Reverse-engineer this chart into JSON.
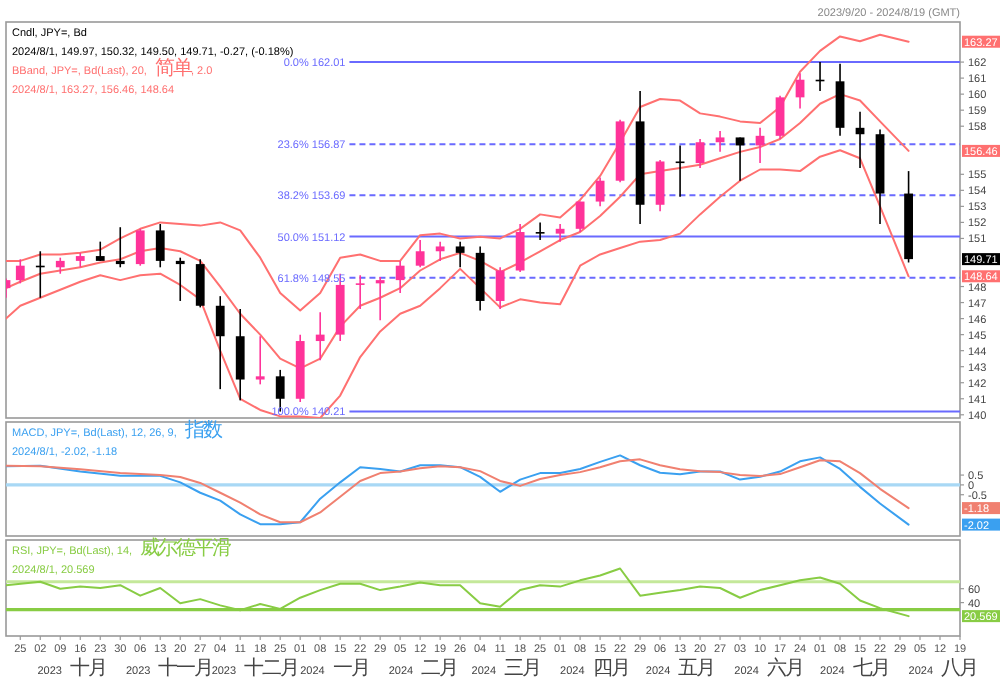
{
  "chart_data": [
    {
      "type": "candlestick",
      "xlim": [
        "2023-09-20",
        "2024-08-19"
      ],
      "ylim": [
        139.8,
        164.5
      ],
      "tick_labels": "y",
      "yticks": [
        140,
        141,
        142,
        143,
        144,
        145,
        146,
        147,
        148,
        151,
        152,
        153,
        154,
        155,
        158,
        159,
        160,
        161,
        162
      ],
      "x": [
        "2023-09-20",
        "2023-09-25",
        "2023-10-02",
        "2023-10-09",
        "2023-10-16",
        "2023-10-23",
        "2023-10-30",
        "2023-11-06",
        "2023-11-13",
        "2023-11-20",
        "2023-11-27",
        "2023-12-04",
        "2023-12-11",
        "2023-12-18",
        "2023-12-25",
        "2024-01-01",
        "2024-01-08",
        "2024-01-15",
        "2024-01-22",
        "2024-01-29",
        "2024-02-05",
        "2024-02-12",
        "2024-02-19",
        "2024-02-26",
        "2024-03-04",
        "2024-03-11",
        "2024-03-18",
        "2024-03-25",
        "2024-04-01",
        "2024-04-08",
        "2024-04-15",
        "2024-04-22",
        "2024-04-29",
        "2024-05-06",
        "2024-05-13",
        "2024-05-20",
        "2024-05-27",
        "2024-06-03",
        "2024-06-10",
        "2024-06-17",
        "2024-06-24",
        "2024-07-01",
        "2024-07-08",
        "2024-07-15",
        "2024-07-22",
        "2024-08-01"
      ],
      "ohlc": [
        [
          147.9,
          148.5,
          147.3,
          148.4
        ],
        [
          148.4,
          149.7,
          148.2,
          149.3
        ],
        [
          149.3,
          150.2,
          147.3,
          149.2
        ],
        [
          149.2,
          149.8,
          148.8,
          149.6
        ],
        [
          149.6,
          150.1,
          149.2,
          149.9
        ],
        [
          149.9,
          150.8,
          149.6,
          149.6
        ],
        [
          149.6,
          151.7,
          149.2,
          149.4
        ],
        [
          149.4,
          151.6,
          149.3,
          151.5
        ],
        [
          151.5,
          151.9,
          149.2,
          149.6
        ],
        [
          149.6,
          149.8,
          147.1,
          149.4
        ],
        [
          149.4,
          149.7,
          146.7,
          146.8
        ],
        [
          146.8,
          147.4,
          141.6,
          144.9
        ],
        [
          144.9,
          146.6,
          140.9,
          142.2
        ],
        [
          142.2,
          144.9,
          141.9,
          142.4
        ],
        [
          142.4,
          142.8,
          140.2,
          141.0
        ],
        [
          141.0,
          145.0,
          140.8,
          144.6
        ],
        [
          144.6,
          146.4,
          143.4,
          145.0
        ],
        [
          145.0,
          148.8,
          144.6,
          148.1
        ],
        [
          148.1,
          148.7,
          146.6,
          148.2
        ],
        [
          148.2,
          148.6,
          145.9,
          148.4
        ],
        [
          148.4,
          149.6,
          147.6,
          149.3
        ],
        [
          149.3,
          150.9,
          149.2,
          150.2
        ],
        [
          150.2,
          150.8,
          149.6,
          150.5
        ],
        [
          150.5,
          150.8,
          149.2,
          150.1
        ],
        [
          150.1,
          150.5,
          146.5,
          147.1
        ],
        [
          147.1,
          149.2,
          146.6,
          149.0
        ],
        [
          149.0,
          151.9,
          148.9,
          151.4
        ],
        [
          151.4,
          152.0,
          150.9,
          151.3
        ],
        [
          151.3,
          151.9,
          150.8,
          151.6
        ],
        [
          151.6,
          153.3,
          151.4,
          153.3
        ],
        [
          153.3,
          154.8,
          153.0,
          154.6
        ],
        [
          154.6,
          158.4,
          154.5,
          158.3
        ],
        [
          158.3,
          160.2,
          151.9,
          153.1
        ],
        [
          153.1,
          155.9,
          152.7,
          155.8
        ],
        [
          155.8,
          156.8,
          153.6,
          155.7
        ],
        [
          155.7,
          157.2,
          155.4,
          157.0
        ],
        [
          157.0,
          157.7,
          156.4,
          157.3
        ],
        [
          157.3,
          157.3,
          154.6,
          156.8
        ],
        [
          156.8,
          157.9,
          155.7,
          157.4
        ],
        [
          157.4,
          159.9,
          157.2,
          159.8
        ],
        [
          159.8,
          161.3,
          159.1,
          160.9
        ],
        [
          160.9,
          162.0,
          160.2,
          160.8
        ],
        [
          160.8,
          161.9,
          157.4,
          157.9
        ],
        [
          157.9,
          158.9,
          155.4,
          157.5
        ],
        [
          157.5,
          157.8,
          151.9,
          153.8
        ],
        [
          153.8,
          155.2,
          149.5,
          149.71
        ]
      ],
      "colors": [
        "#ff3399",
        "#ff3399",
        "#000000",
        "#ff3399",
        "#ff3399",
        "#000000",
        "#000000",
        "#ff3399",
        "#000000",
        "#000000",
        "#000000",
        "#000000",
        "#000000",
        "#ff3399",
        "#000000",
        "#ff3399",
        "#ff3399",
        "#ff3399",
        "#ff3399",
        "#ff3399",
        "#ff3399",
        "#ff3399",
        "#ff3399",
        "#000000",
        "#000000",
        "#ff3399",
        "#ff3399",
        "#000000",
        "#ff3399",
        "#ff3399",
        "#ff3399",
        "#ff3399",
        "#000000",
        "#ff3399",
        "#000000",
        "#ff3399",
        "#ff3399",
        "#000000",
        "#ff3399",
        "#ff3399",
        "#ff3399",
        "#000000",
        "#000000",
        "#000000",
        "#000000",
        "#000000"
      ],
      "series": [
        {
          "type": "line",
          "color": "#ff7070",
          "values": [
            149.6,
            149.6,
            150.0,
            150.0,
            150.1,
            150.3,
            151.0,
            151.6,
            152.0,
            151.9,
            151.8,
            152.0,
            151.5,
            149.8,
            147.6,
            146.5,
            147.6,
            149.8,
            150.0,
            149.6,
            149.6,
            151.2,
            151.3,
            151.0,
            151.1,
            151.0,
            151.6,
            152.5,
            152.3,
            153.4,
            154.9,
            157.0,
            159.2,
            159.7,
            159.6,
            158.8,
            158.6,
            158.3,
            158.2,
            159.2,
            161.4,
            162.7,
            163.6,
            163.3,
            163.7,
            163.27
          ]
        },
        {
          "type": "line",
          "color": "#ff7070",
          "values": [
            147.9,
            148.3,
            148.8,
            149.0,
            149.2,
            149.5,
            149.7,
            150.2,
            150.4,
            150.2,
            149.6,
            148.0,
            146.3,
            145.0,
            143.5,
            142.9,
            143.5,
            145.5,
            146.8,
            147.3,
            147.9,
            149.0,
            149.7,
            150.1,
            149.6,
            148.9,
            149.5,
            150.2,
            150.9,
            151.4,
            152.4,
            153.6,
            155.0,
            155.2,
            155.4,
            155.6,
            156.0,
            156.4,
            156.7,
            157.2,
            158.2,
            159.4,
            160.0,
            159.6,
            158.3,
            156.46
          ]
        },
        {
          "type": "line",
          "color": "#ff7070",
          "values": [
            146.0,
            146.8,
            147.3,
            147.8,
            148.3,
            148.7,
            148.4,
            148.7,
            148.8,
            148.1,
            147.2,
            144.0,
            141.0,
            140.3,
            139.9,
            139.9,
            139.8,
            141.2,
            143.6,
            145.2,
            146.3,
            146.8,
            147.9,
            149.1,
            147.9,
            146.7,
            147.2,
            147.0,
            146.9,
            149.3,
            150.0,
            150.4,
            150.8,
            150.9,
            151.3,
            152.5,
            153.6,
            154.6,
            155.3,
            155.3,
            155.2,
            156.1,
            156.5,
            156.0,
            153.0,
            148.64
          ]
        }
      ],
      "ref_lines": [
        {
          "axis": "y",
          "value": 162.01,
          "label": "0.0%  162.01",
          "color": "#6a6aff",
          "line_style": "solid"
        },
        {
          "axis": "y",
          "value": 156.87,
          "label": "23.6%  156.87",
          "color": "#6a6aff",
          "line_style": "dashed"
        },
        {
          "axis": "y",
          "value": 153.69,
          "label": "38.2%  153.69",
          "color": "#6a6aff",
          "line_style": "dashed"
        },
        {
          "axis": "y",
          "value": 151.12,
          "label": "50.0%  151.12",
          "color": "#6a6aff",
          "line_style": "solid"
        },
        {
          "axis": "y",
          "value": 148.55,
          "label": "61.8%  148.55",
          "color": "#6a6aff",
          "line_style": "dashed"
        },
        {
          "axis": "y",
          "value": 140.21,
          "label": "100.0%  140.21",
          "color": "#6a6aff",
          "line_style": "solid"
        }
      ],
      "annotations": [
        "Cndl, JPY=, Bd",
        "2024/8/1, 149.97, 150.32, 149.50, 149.71, -0.27, (-0.18%)",
        "BBand, JPY=, Bd(Last), 20, 简单, 2.0",
        "2024/8/1, 163.27, 156.46, 148.64",
        "2023/9/20 - 2024/8/19 (GMT)",
        "163.27",
        "156.46",
        "148.64",
        "149.71"
      ]
    },
    {
      "type": "line",
      "xlim": [
        "2023-09-20",
        "2024-08-19"
      ],
      "ylim": [
        -2.6,
        3.2
      ],
      "yticks": [
        0.5,
        0,
        -0.5
      ],
      "tick_labels": "y",
      "series": [
        {
          "color": "#3aa0f0",
          "x": [
            "2023-09-20",
            "2023-10-02",
            "2023-10-16",
            "2023-10-30",
            "2023-11-13",
            "2023-11-20",
            "2023-11-27",
            "2023-12-04",
            "2023-12-11",
            "2023-12-18",
            "2023-12-25",
            "2024-01-01",
            "2024-01-08",
            "2024-01-15",
            "2024-01-22",
            "2024-01-29",
            "2024-02-05",
            "2024-02-12",
            "2024-02-19",
            "2024-02-26",
            "2024-03-04",
            "2024-03-11",
            "2024-03-18",
            "2024-03-25",
            "2024-04-01",
            "2024-04-08",
            "2024-04-15",
            "2024-04-22",
            "2024-04-29",
            "2024-05-06",
            "2024-05-13",
            "2024-05-20",
            "2024-05-27",
            "2024-06-03",
            "2024-06-10",
            "2024-06-17",
            "2024-06-24",
            "2024-07-01",
            "2024-07-08",
            "2024-07-15",
            "2024-07-22",
            "2024-08-01"
          ],
          "values": [
            0.95,
            0.97,
            0.68,
            0.46,
            0.46,
            0.13,
            -0.4,
            -0.8,
            -1.5,
            -2.0,
            -2.0,
            -1.9,
            -0.7,
            0.13,
            0.9,
            0.81,
            0.68,
            1.0,
            1.0,
            0.9,
            0.41,
            -0.35,
            0.27,
            0.6,
            0.6,
            0.81,
            1.17,
            1.5,
            1.0,
            0.62,
            0.54,
            0.68,
            0.68,
            0.27,
            0.41,
            0.68,
            1.2,
            1.4,
            0.81,
            -0.1,
            -0.95,
            -2.02
          ]
        },
        {
          "color": "#f08070",
          "x": [
            "2023-09-20",
            "2023-10-02",
            "2023-10-16",
            "2023-10-30",
            "2023-11-13",
            "2023-11-20",
            "2023-11-27",
            "2023-12-04",
            "2023-12-11",
            "2023-12-18",
            "2023-12-25",
            "2024-01-01",
            "2024-01-08",
            "2024-01-15",
            "2024-01-22",
            "2024-01-29",
            "2024-02-05",
            "2024-02-12",
            "2024-02-19",
            "2024-02-26",
            "2024-03-04",
            "2024-03-11",
            "2024-03-18",
            "2024-03-25",
            "2024-04-01",
            "2024-04-08",
            "2024-04-15",
            "2024-04-22",
            "2024-04-29",
            "2024-05-06",
            "2024-05-13",
            "2024-05-20",
            "2024-05-27",
            "2024-06-03",
            "2024-06-10",
            "2024-06-17",
            "2024-06-24",
            "2024-07-01",
            "2024-07-08",
            "2024-07-15",
            "2024-07-22",
            "2024-08-01"
          ],
          "values": [
            0.97,
            0.95,
            0.8,
            0.6,
            0.5,
            0.4,
            0.1,
            -0.4,
            -0.9,
            -1.5,
            -1.9,
            -1.9,
            -1.4,
            -0.6,
            0.2,
            0.6,
            0.68,
            0.85,
            0.95,
            0.9,
            0.7,
            0.2,
            -0.05,
            0.3,
            0.5,
            0.65,
            0.9,
            1.2,
            1.3,
            1.0,
            0.8,
            0.7,
            0.65,
            0.5,
            0.45,
            0.55,
            0.9,
            1.25,
            1.2,
            0.6,
            -0.2,
            -1.18
          ]
        }
      ],
      "ref_lines": [
        {
          "axis": "y",
          "value": 0,
          "color": "#a8d8f5"
        }
      ],
      "annotations": [
        "MACD, JPY=, Bd(Last), 12, 26, 9, 指数",
        "2024/8/1, -2.02, -1.18",
        "-2.02",
        "-1.18"
      ]
    },
    {
      "type": "line",
      "xlim": [
        "2023-09-20",
        "2024-08-19"
      ],
      "ylim": [
        -8,
        130
      ],
      "yticks": [
        60,
        40
      ],
      "xticks": [
        {
          "value": "2023-09-25",
          "label": "25"
        },
        {
          "value": "2023-10-02",
          "label": "02"
        },
        {
          "value": "2023-10-09",
          "label": "09"
        },
        {
          "value": "2023-10-16",
          "label": "16"
        },
        {
          "value": "2023-10-23",
          "label": "23"
        },
        {
          "value": "2023-10-30",
          "label": "30"
        },
        {
          "value": "2023-11-06",
          "label": "06"
        },
        {
          "value": "2023-11-13",
          "label": "13"
        },
        {
          "value": "2023-11-20",
          "label": "20"
        },
        {
          "value": "2023-11-27",
          "label": "27"
        },
        {
          "value": "2023-12-04",
          "label": "04"
        },
        {
          "value": "2023-12-11",
          "label": "11"
        },
        {
          "value": "2023-12-18",
          "label": "18"
        },
        {
          "value": "2023-12-25",
          "label": "25"
        },
        {
          "value": "2024-01-01",
          "label": "01"
        },
        {
          "value": "2024-01-08",
          "label": "08"
        },
        {
          "value": "2024-01-15",
          "label": "15"
        },
        {
          "value": "2024-01-22",
          "label": "22"
        },
        {
          "value": "2024-01-29",
          "label": "29"
        },
        {
          "value": "2024-02-05",
          "label": "05"
        },
        {
          "value": "2024-02-12",
          "label": "12"
        },
        {
          "value": "2024-02-19",
          "label": "19"
        },
        {
          "value": "2024-02-26",
          "label": "26"
        },
        {
          "value": "2024-03-04",
          "label": "04"
        },
        {
          "value": "2024-03-11",
          "label": "11"
        },
        {
          "value": "2024-03-18",
          "label": "18"
        },
        {
          "value": "2024-03-25",
          "label": "25"
        },
        {
          "value": "2024-04-01",
          "label": "01"
        },
        {
          "value": "2024-04-08",
          "label": "08"
        },
        {
          "value": "2024-04-15",
          "label": "15"
        },
        {
          "value": "2024-04-22",
          "label": "22"
        },
        {
          "value": "2024-04-29",
          "label": "29"
        },
        {
          "value": "2024-05-06",
          "label": "06"
        },
        {
          "value": "2024-05-13",
          "label": "13"
        },
        {
          "value": "2024-05-20",
          "label": "20"
        },
        {
          "value": "2024-05-27",
          "label": "27"
        },
        {
          "value": "2024-06-03",
          "label": "03"
        },
        {
          "value": "2024-06-10",
          "label": "10"
        },
        {
          "value": "2024-06-17",
          "label": "17"
        },
        {
          "value": "2024-06-24",
          "label": "24"
        },
        {
          "value": "2024-07-01",
          "label": "01"
        },
        {
          "value": "2024-07-08",
          "label": "08"
        },
        {
          "value": "2024-07-15",
          "label": "15"
        },
        {
          "value": "2024-07-22",
          "label": "22"
        },
        {
          "value": "2024-07-29",
          "label": "29"
        },
        {
          "value": "2024-08-05",
          "label": "05"
        },
        {
          "value": "2024-08-12",
          "label": "12"
        },
        {
          "value": "2024-08-19",
          "label": "19"
        }
      ],
      "series": [
        {
          "color": "#88cc44",
          "x": [
            "2023-09-20",
            "2023-10-02",
            "2023-10-09",
            "2023-10-16",
            "2023-10-23",
            "2023-10-30",
            "2023-11-06",
            "2023-11-13",
            "2023-11-20",
            "2023-11-27",
            "2023-12-04",
            "2023-12-11",
            "2023-12-18",
            "2023-12-25",
            "2024-01-01",
            "2024-01-08",
            "2024-01-15",
            "2024-01-22",
            "2024-01-29",
            "2024-02-05",
            "2024-02-12",
            "2024-02-19",
            "2024-02-26",
            "2024-03-04",
            "2024-03-11",
            "2024-03-18",
            "2024-03-25",
            "2024-04-01",
            "2024-04-08",
            "2024-04-15",
            "2024-04-22",
            "2024-04-29",
            "2024-05-06",
            "2024-05-13",
            "2024-05-20",
            "2024-05-27",
            "2024-06-03",
            "2024-06-10",
            "2024-06-17",
            "2024-06-24",
            "2024-07-01",
            "2024-07-08",
            "2024-07-15",
            "2024-07-22",
            "2024-08-01"
          ],
          "values": [
            65,
            70,
            60,
            63,
            61,
            65,
            50,
            61,
            39,
            45,
            36,
            29,
            38,
            31,
            47,
            58,
            67,
            67,
            58,
            63,
            69,
            65,
            65,
            39,
            34,
            58,
            65,
            63,
            72,
            79,
            89,
            50,
            54,
            58,
            63,
            61,
            47,
            58,
            65,
            72,
            76,
            67,
            43,
            32,
            20.569
          ]
        }
      ],
      "ref_lines": [
        {
          "axis": "y",
          "value": 70,
          "color": "#c4e89a"
        },
        {
          "axis": "y",
          "value": 30,
          "color": "#88cc44"
        }
      ],
      "annotations": [
        "RSI, JPY=, Bd(Last), 14, 威尔德平滑",
        "2024/8/1, 20.569",
        "20.569",
        "2023 十月",
        "2023 十一月",
        "2023 十二月",
        "2024 一月",
        "2024 二月",
        "2024 三月",
        "2024 四月",
        "2024 五月",
        "2024 六月",
        "2024 七月",
        "2024 八月"
      ]
    }
  ]
}
